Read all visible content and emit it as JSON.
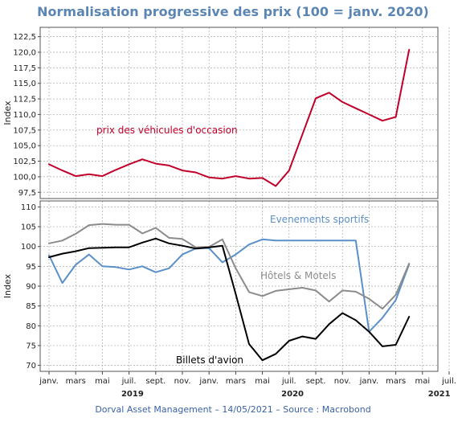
{
  "chart_data": [
    {
      "type": "line",
      "ylabel": "Index",
      "ylim": [
        96.5,
        124
      ],
      "yticks": [
        "97,5",
        "100,0",
        "102,5",
        "105,0",
        "107,5",
        "110,0",
        "112,5",
        "115,0",
        "117,5",
        "120,0",
        "122,5"
      ],
      "ytick_values": [
        97.5,
        100,
        102.5,
        105,
        107.5,
        110,
        112.5,
        115,
        117.5,
        120,
        122.5
      ],
      "grid": true,
      "series": [
        {
          "name": "prix des véhicules d'occasion",
          "color": "#c0002a",
          "x": [
            "2019-01",
            "2019-02",
            "2019-03",
            "2019-04",
            "2019-05",
            "2019-06",
            "2019-07",
            "2019-08",
            "2019-09",
            "2019-10",
            "2019-11",
            "2019-12",
            "2020-01",
            "2020-02",
            "2020-03",
            "2020-04",
            "2020-05",
            "2020-06",
            "2020-07",
            "2020-08",
            "2020-09",
            "2020-10",
            "2020-11",
            "2020-12",
            "2021-01",
            "2021-02",
            "2021-03",
            "2021-04"
          ],
          "values": [
            102.0,
            101.0,
            100.1,
            100.4,
            100.1,
            101.1,
            102.0,
            102.8,
            102.1,
            101.8,
            101.0,
            100.7,
            99.9,
            99.7,
            100.1,
            99.7,
            99.8,
            98.5,
            101.0,
            106.8,
            112.6,
            113.5,
            112.0,
            111.0,
            110.0,
            109.0,
            109.6,
            120.4
          ]
        }
      ]
    },
    {
      "type": "line",
      "ylabel": "Index",
      "ylim": [
        68.5,
        111.5
      ],
      "yticks": [
        "70",
        "75",
        "80",
        "85",
        "90",
        "95",
        "100",
        "105",
        "110"
      ],
      "ytick_values": [
        70,
        75,
        80,
        85,
        90,
        95,
        100,
        105,
        110
      ],
      "grid": true,
      "series": [
        {
          "name": "Evenements sportifs",
          "color": "#5b8fc9",
          "x": [
            "2019-01",
            "2019-02",
            "2019-03",
            "2019-04",
            "2019-05",
            "2019-06",
            "2019-07",
            "2019-08",
            "2019-09",
            "2019-10",
            "2019-11",
            "2019-12",
            "2020-01",
            "2020-02",
            "2020-03",
            "2020-04",
            "2020-05",
            "2020-06",
            "2020-07",
            "2020-08",
            "2020-09",
            "2020-10",
            "2020-11",
            "2020-12",
            "2021-01",
            "2021-02",
            "2021-03",
            "2021-04"
          ],
          "values": [
            97.8,
            90.8,
            95.4,
            98.0,
            95.0,
            94.8,
            94.2,
            95.0,
            93.5,
            94.5,
            98.0,
            99.5,
            99.6,
            96.0,
            98.0,
            100.5,
            101.8,
            101.5,
            101.5,
            101.5,
            101.5,
            101.5,
            101.5,
            101.5,
            78.5,
            82.0,
            86.5,
            95.5
          ]
        },
        {
          "name": "Hôtels & Motels",
          "color": "#8c8c8c",
          "x": [
            "2019-01",
            "2019-02",
            "2019-03",
            "2019-04",
            "2019-05",
            "2019-06",
            "2019-07",
            "2019-08",
            "2019-09",
            "2019-10",
            "2019-11",
            "2019-12",
            "2020-01",
            "2020-02",
            "2020-03",
            "2020-04",
            "2020-05",
            "2020-06",
            "2020-07",
            "2020-08",
            "2020-09",
            "2020-10",
            "2020-11",
            "2020-12",
            "2021-01",
            "2021-02",
            "2021-03",
            "2021-04"
          ],
          "values": [
            100.8,
            101.5,
            103.2,
            105.4,
            105.7,
            105.5,
            105.5,
            103.3,
            104.7,
            102.2,
            101.9,
            99.8,
            99.9,
            101.8,
            94.5,
            88.5,
            87.5,
            88.8,
            89.2,
            89.6,
            88.9,
            86.1,
            88.9,
            88.6,
            86.8,
            84.3,
            87.8,
            95.7
          ]
        },
        {
          "name": "Billets d'avion",
          "color": "#000000",
          "x": [
            "2019-01",
            "2019-02",
            "2019-03",
            "2019-04",
            "2019-05",
            "2019-06",
            "2019-07",
            "2019-08",
            "2019-09",
            "2019-10",
            "2019-11",
            "2019-12",
            "2020-01",
            "2020-02",
            "2020-03",
            "2020-04",
            "2020-05",
            "2020-06",
            "2020-07",
            "2020-08",
            "2020-09",
            "2020-10",
            "2020-11",
            "2020-12",
            "2021-01",
            "2021-02",
            "2021-03",
            "2021-04"
          ],
          "values": [
            97.3,
            98.2,
            98.8,
            99.6,
            99.7,
            99.8,
            99.8,
            101.0,
            102.0,
            100.8,
            100.2,
            99.5,
            99.8,
            100.2,
            88.0,
            75.4,
            71.3,
            72.9,
            76.2,
            77.3,
            76.7,
            80.4,
            83.2,
            81.4,
            78.5,
            74.8,
            75.2,
            82.3
          ]
        }
      ]
    }
  ],
  "title": "Normalisation progressive des prix (100 = janv. 2020)",
  "annotations": {
    "used_cars": "prix des véhicules d'occasion",
    "sports": "Evenements sportifs",
    "hotels": "Hôtels & Motels",
    "airfare": "Billets d'avion"
  },
  "x_axis": {
    "month_labels": [
      "janv.",
      "mars",
      "mai",
      "juil.",
      "sept.",
      "nov.",
      "janv.",
      "mars",
      "mai",
      "juil.",
      "sept.",
      "nov.",
      "janv.",
      "mars",
      "mai",
      "juil."
    ],
    "year_labels": [
      "2019",
      "2020",
      "2021"
    ]
  },
  "footer": "Dorval Asset Management – 14/05/2021 –  Source : Macrobond",
  "colors": {
    "title": "#5b86b3",
    "footer": "#3a62a8",
    "grid": "#a9a9a9",
    "frame": "#555555"
  }
}
